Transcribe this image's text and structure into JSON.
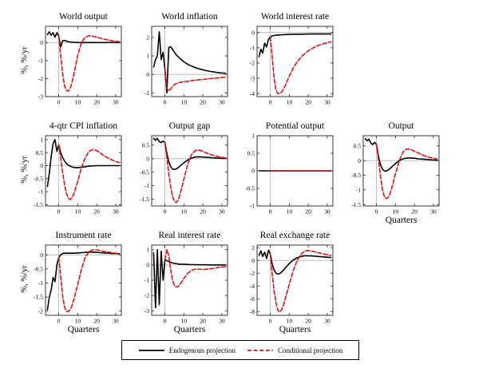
{
  "figure": {
    "background": "#ffffff",
    "axis_color": "#222222",
    "guide_color": "#b4b4b4",
    "legend": {
      "position": "bottom-center",
      "entries": [
        {
          "label": "Endogenous projection",
          "color": "#000000",
          "dash": "solid"
        },
        {
          "label": "Conditional projection",
          "color": "#dd1111",
          "dash": "dashed"
        }
      ]
    }
  },
  "x_history": [
    -6,
    -5,
    -4,
    -3,
    -2,
    -1,
    0,
    1,
    2,
    3,
    4,
    5,
    6,
    7,
    8,
    10,
    12,
    14,
    16,
    18,
    20,
    22,
    24,
    26,
    28,
    30,
    32
  ],
  "x_projection": [
    0,
    1,
    2,
    3,
    4,
    5,
    6,
    7,
    8,
    10,
    12,
    14,
    16,
    18,
    20,
    22,
    24,
    26,
    28,
    30,
    32
  ],
  "chart_data": [
    {
      "id": "world-output",
      "type": "line",
      "title": "World output",
      "row": 1,
      "col": 1,
      "ylabel": "%, %/yr",
      "xlim": [
        -7,
        33
      ],
      "ylim": [
        -3,
        0.9
      ],
      "xticks": [
        0,
        10,
        20,
        30
      ],
      "yticks": [
        0,
        -1,
        -2,
        -3
      ],
      "series": [
        {
          "name": "Endogenous projection",
          "x_ref": "x_history",
          "y": [
            0.45,
            0.6,
            0.4,
            0.55,
            0.3,
            0.55,
            0.35,
            -0.25,
            0.1,
            0.12,
            0.08,
            0.05,
            0.03,
            0.02,
            0.01,
            0,
            0,
            0,
            0,
            0,
            0,
            0,
            0,
            0,
            0,
            0,
            0
          ]
        },
        {
          "name": "Conditional projection",
          "x_ref": "x_projection",
          "y": [
            0.35,
            -0.7,
            -1.7,
            -2.4,
            -2.65,
            -2.7,
            -2.55,
            -2.2,
            -1.75,
            -0.7,
            0.0,
            0.3,
            0.38,
            0.35,
            0.3,
            0.24,
            0.19,
            0.14,
            0.1,
            0.07,
            0.05
          ]
        }
      ]
    },
    {
      "id": "world-inflation",
      "type": "line",
      "title": "World inflation",
      "row": 1,
      "col": 2,
      "xlim": [
        -7,
        33
      ],
      "ylim": [
        -1.2,
        2.6
      ],
      "xticks": [
        0,
        10,
        20,
        30
      ],
      "yticks": [
        2,
        1,
        0,
        -1
      ],
      "series": [
        {
          "name": "Endogenous projection",
          "x_ref": "x_history",
          "y": [
            0.4,
            0.8,
            1.0,
            2.3,
            0.8,
            1.2,
            0.3,
            -1.0,
            1.45,
            1.5,
            1.35,
            1.2,
            1.05,
            0.95,
            0.85,
            0.68,
            0.55,
            0.45,
            0.37,
            0.3,
            0.25,
            0.2,
            0.16,
            0.13,
            0.1,
            0.08,
            0.06
          ]
        },
        {
          "name": "Conditional projection",
          "x_ref": "x_projection",
          "y": [
            0.3,
            -0.75,
            -0.9,
            -0.78,
            -0.65,
            -0.55,
            -0.5,
            -0.46,
            -0.43,
            -0.4,
            -0.37,
            -0.34,
            -0.31,
            -0.29,
            -0.27,
            -0.25,
            -0.23,
            -0.21,
            -0.19,
            -0.17,
            -0.15
          ]
        }
      ]
    },
    {
      "id": "world-interest-rate",
      "type": "line",
      "title": "World interest rate",
      "row": 1,
      "col": 3,
      "xlim": [
        -7,
        33
      ],
      "ylim": [
        -4.2,
        0.4
      ],
      "xticks": [
        0,
        10,
        20,
        30
      ],
      "yticks": [
        0,
        -1,
        -2,
        -3,
        -4
      ],
      "series": [
        {
          "name": "Endogenous projection",
          "x_ref": "x_history",
          "y": [
            -1.6,
            -1.1,
            -1.35,
            -0.7,
            -0.95,
            -0.45,
            -0.3,
            -0.22,
            -0.2,
            -0.18,
            -0.17,
            -0.16,
            -0.15,
            -0.15,
            -0.14,
            -0.13,
            -0.12,
            -0.12,
            -0.11,
            -0.11,
            -0.1,
            -0.1,
            -0.1,
            -0.1,
            -0.1,
            -0.1,
            -0.1
          ]
        },
        {
          "name": "Conditional projection",
          "x_ref": "x_projection",
          "y": [
            -0.3,
            -1.6,
            -3.0,
            -3.8,
            -4.0,
            -4.0,
            -3.9,
            -3.7,
            -3.45,
            -2.85,
            -2.35,
            -1.95,
            -1.65,
            -1.4,
            -1.2,
            -1.05,
            -0.92,
            -0.82,
            -0.74,
            -0.67,
            -0.62
          ]
        }
      ]
    },
    {
      "id": "cpi-inflation",
      "type": "line",
      "title": "4-qtr CPI inflation",
      "row": 2,
      "col": 1,
      "ylabel": "%, %/yr",
      "xlim": [
        -7,
        33
      ],
      "ylim": [
        -1.55,
        1.15
      ],
      "xticks": [
        0,
        10,
        20,
        30
      ],
      "yticks": [
        1,
        0.5,
        0,
        -0.5,
        -1,
        -1.5
      ],
      "series": [
        {
          "name": "Endogenous projection",
          "x_ref": "x_history",
          "y": [
            -0.8,
            -0.3,
            0.35,
            0.85,
            1.0,
            0.55,
            0.8,
            0.5,
            0.32,
            0.18,
            0.08,
            0.02,
            -0.02,
            -0.05,
            -0.07,
            -0.08,
            -0.06,
            -0.04,
            -0.02,
            -0.01,
            0,
            0,
            0,
            0,
            0,
            0,
            0
          ]
        },
        {
          "name": "Conditional projection",
          "x_ref": "x_projection",
          "y": [
            0.8,
            0.3,
            -0.25,
            -0.72,
            -1.05,
            -1.25,
            -1.3,
            -1.23,
            -1.08,
            -0.6,
            -0.08,
            0.32,
            0.55,
            0.62,
            0.58,
            0.48,
            0.38,
            0.29,
            0.22,
            0.16,
            0.12
          ]
        }
      ]
    },
    {
      "id": "output-gap",
      "type": "line",
      "title": "Output gap",
      "row": 2,
      "col": 2,
      "xlim": [
        -7,
        33
      ],
      "ylim": [
        -1.75,
        0.85
      ],
      "xticks": [
        0,
        10,
        20,
        30
      ],
      "yticks": [
        0.5,
        0,
        -0.5,
        -1,
        -1.5
      ],
      "series": [
        {
          "name": "Endogenous projection",
          "x_ref": "x_history",
          "y": [
            0.75,
            0.68,
            0.75,
            0.63,
            0.6,
            0.65,
            0.6,
            0.2,
            -0.12,
            -0.3,
            -0.38,
            -0.4,
            -0.38,
            -0.33,
            -0.27,
            -0.15,
            -0.05,
            0.02,
            0.06,
            0.07,
            0.06,
            0.05,
            0.04,
            0.03,
            0.02,
            0.01,
            0.01
          ]
        },
        {
          "name": "Conditional projection",
          "x_ref": "x_projection",
          "y": [
            0.6,
            0.05,
            -0.55,
            -1.05,
            -1.4,
            -1.58,
            -1.62,
            -1.52,
            -1.32,
            -0.75,
            -0.2,
            0.15,
            0.3,
            0.32,
            0.27,
            0.21,
            0.16,
            0.11,
            0.08,
            0.05,
            0.03
          ]
        }
      ]
    },
    {
      "id": "potential-output",
      "type": "line",
      "title": "Potential output",
      "row": 2,
      "col": 3,
      "xlim": [
        -7,
        33
      ],
      "ylim": [
        -1,
        1
      ],
      "xticks": [
        0,
        10,
        20,
        30
      ],
      "yticks": [
        1,
        0.5,
        0,
        -0.5,
        -1
      ],
      "series": [
        {
          "name": "Endogenous projection",
          "x_ref": "x_history",
          "y": [
            0,
            0,
            0,
            0,
            0,
            0,
            0,
            0,
            0,
            0,
            0,
            0,
            0,
            0,
            0,
            0,
            0,
            0,
            0,
            0,
            0,
            0,
            0,
            0,
            0,
            0,
            0
          ]
        },
        {
          "name": "Conditional projection",
          "x_ref": "x_projection",
          "y": [
            0,
            0,
            0,
            0,
            0,
            0,
            0,
            0,
            0,
            0,
            0,
            0,
            0,
            0,
            0,
            0,
            0,
            0,
            0,
            0,
            0
          ]
        }
      ]
    },
    {
      "id": "output",
      "type": "line",
      "title": "Output",
      "row": 2,
      "col": 4,
      "xlabel": "Quarters",
      "xlim": [
        -7,
        33
      ],
      "ylim": [
        -1.55,
        0.85
      ],
      "xticks": [
        0,
        10,
        20,
        30
      ],
      "yticks": [
        0.5,
        0,
        -0.5,
        -1,
        -1.5
      ],
      "series": [
        {
          "name": "Endogenous projection",
          "x_ref": "x_history",
          "y": [
            0.75,
            0.68,
            0.73,
            0.6,
            0.55,
            0.62,
            0.55,
            0.15,
            -0.12,
            -0.28,
            -0.35,
            -0.36,
            -0.33,
            -0.28,
            -0.22,
            -0.1,
            0.0,
            0.06,
            0.09,
            0.09,
            0.08,
            0.06,
            0.05,
            0.04,
            0.03,
            0.02,
            0.01
          ]
        },
        {
          "name": "Conditional projection",
          "x_ref": "x_projection",
          "y": [
            0.55,
            0.05,
            -0.5,
            -0.95,
            -1.2,
            -1.3,
            -1.27,
            -1.15,
            -0.95,
            -0.45,
            0.0,
            0.3,
            0.4,
            0.38,
            0.32,
            0.26,
            0.2,
            0.15,
            0.11,
            0.08,
            0.05
          ]
        }
      ]
    },
    {
      "id": "instrument-rate",
      "type": "line",
      "title": "Instrument rate",
      "row": 3,
      "col": 1,
      "ylabel": "%, %/yr",
      "xlabel": "Quarters",
      "xlim": [
        -7,
        33
      ],
      "ylim": [
        -2.15,
        0.35
      ],
      "xticks": [
        0,
        10,
        20,
        30
      ],
      "yticks": [
        0,
        -0.5,
        -1,
        -1.5,
        -2
      ],
      "series": [
        {
          "name": "Endogenous projection",
          "x_ref": "x_history",
          "y": [
            -1.95,
            -1.5,
            -1.25,
            -0.8,
            -0.95,
            -0.35,
            -0.1,
            0.0,
            0.05,
            0.06,
            0.06,
            0.06,
            0.06,
            0.06,
            0.06,
            0.07,
            0.08,
            0.09,
            0.1,
            0.1,
            0.09,
            0.08,
            0.07,
            0.06,
            0.05,
            0.05,
            0.04
          ]
        },
        {
          "name": "Conditional projection",
          "x_ref": "x_projection",
          "y": [
            -0.1,
            -0.75,
            -1.45,
            -1.85,
            -2.0,
            -2.02,
            -1.95,
            -1.8,
            -1.58,
            -1.05,
            -0.5,
            -0.08,
            0.12,
            0.18,
            0.18,
            0.15,
            0.12,
            0.1,
            0.08,
            0.06,
            0.05
          ]
        }
      ]
    },
    {
      "id": "real-interest-rate",
      "type": "line",
      "title": "Real interest rate",
      "row": 3,
      "col": 2,
      "xlabel": "Quarters",
      "xlim": [
        -7,
        33
      ],
      "ylim": [
        -3.3,
        1.3
      ],
      "xticks": [
        0,
        10,
        20,
        30
      ],
      "yticks": [
        1,
        0,
        -1,
        -2,
        -3
      ],
      "series": [
        {
          "name": "Endogenous projection",
          "x_ref": "x_history",
          "y": [
            0.8,
            -2.8,
            1.0,
            -2.6,
            0.9,
            -1.0,
            0.35,
            0.28,
            0.22,
            0.17,
            0.13,
            0.1,
            0.08,
            0.06,
            0.05,
            0.04,
            0.03,
            0.02,
            0.02,
            0.01,
            0.01,
            0.01,
            0.0,
            0.0,
            0.0,
            0.0,
            0.0
          ]
        },
        {
          "name": "Conditional projection",
          "x_ref": "x_projection",
          "y": [
            0.35,
            1.0,
            0.6,
            -0.3,
            -1.0,
            -1.35,
            -1.45,
            -1.42,
            -1.28,
            -0.88,
            -0.55,
            -0.35,
            -0.27,
            -0.28,
            -0.3,
            -0.28,
            -0.25,
            -0.21,
            -0.17,
            -0.14,
            -0.11
          ]
        }
      ]
    },
    {
      "id": "real-exchange-rate",
      "type": "line",
      "title": "Real exchange rate",
      "row": 3,
      "col": 3,
      "xlabel": "Quarters",
      "xlim": [
        -7,
        33
      ],
      "ylim": [
        -8.6,
        2.4
      ],
      "xticks": [
        0,
        10,
        20,
        30
      ],
      "yticks": [
        2,
        0,
        -2,
        -4,
        -6,
        -8
      ],
      "series": [
        {
          "name": "Endogenous projection",
          "x_ref": "x_history",
          "y": [
            0.8,
            1.5,
            0.6,
            1.3,
            0.3,
            1.6,
            1.0,
            -0.6,
            -1.5,
            -2.0,
            -2.15,
            -2.05,
            -1.8,
            -1.5,
            -1.15,
            -0.5,
            0.05,
            0.4,
            0.62,
            0.72,
            0.73,
            0.7,
            0.65,
            0.6,
            0.55,
            0.5,
            0.45
          ]
        },
        {
          "name": "Conditional projection",
          "x_ref": "x_projection",
          "y": [
            1.0,
            -2.2,
            -4.8,
            -6.7,
            -7.8,
            -8.1,
            -7.7,
            -6.9,
            -5.9,
            -3.7,
            -1.7,
            -0.1,
            0.9,
            1.45,
            1.55,
            1.45,
            1.3,
            1.15,
            1.0,
            0.88,
            0.78
          ]
        }
      ]
    }
  ]
}
